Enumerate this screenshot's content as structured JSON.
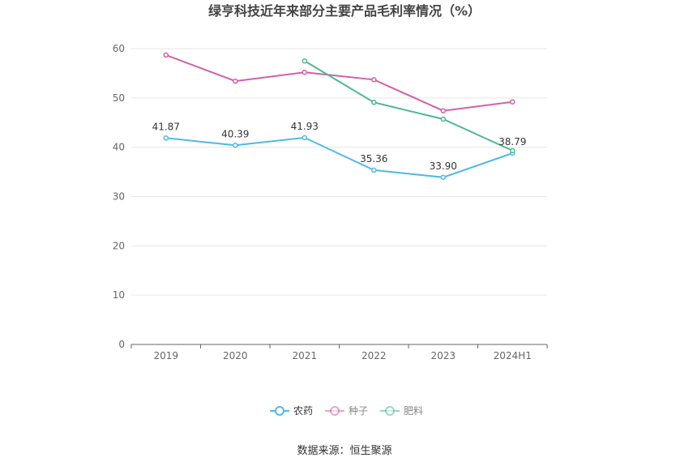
{
  "chart_data": {
    "type": "line",
    "title": "绿亨科技近年来部分主要产品毛利率情况（%）",
    "categories": [
      "2019",
      "2020",
      "2021",
      "2022",
      "2023",
      "2024H1"
    ],
    "ylim": [
      0,
      60
    ],
    "yticks": [
      0,
      10,
      20,
      30,
      40,
      50,
      60
    ],
    "grid": true,
    "legend_position": "bottom",
    "series": [
      {
        "name": "农药",
        "color": "#4fb9e9",
        "values": [
          41.87,
          40.39,
          41.93,
          35.36,
          33.9,
          38.79
        ],
        "labels": [
          "41.87",
          "40.39",
          "41.93",
          "35.36",
          "33.90",
          "38.79"
        ]
      },
      {
        "name": "种子",
        "color": "#d45fa8",
        "values": [
          58.7,
          53.4,
          55.2,
          53.7,
          47.4,
          49.2
        ]
      },
      {
        "name": "肥料",
        "color": "#4db895",
        "values": [
          null,
          null,
          57.5,
          49.1,
          45.7,
          39.3
        ]
      }
    ],
    "source": "数据来源：恒生聚源"
  }
}
